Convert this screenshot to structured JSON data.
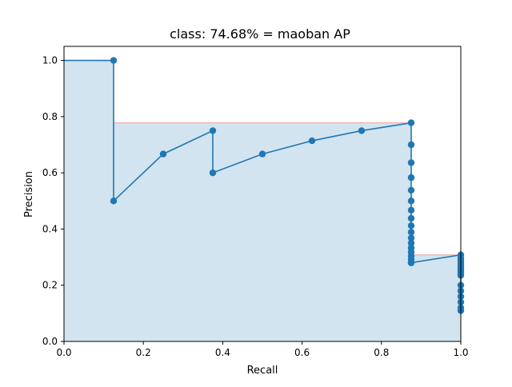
{
  "chart_data": {
    "type": "area",
    "title": "class: 74.68% = maoban AP",
    "xlabel": "Recall",
    "ylabel": "Precision",
    "xlim": [
      0,
      1
    ],
    "ylim": [
      0,
      1.05
    ],
    "xticks": [
      "0.0",
      "0.2",
      "0.4",
      "0.6",
      "0.8",
      "1.0"
    ],
    "yticks": [
      "0.0",
      "0.2",
      "0.4",
      "0.6",
      "0.8",
      "1.0"
    ],
    "grid": false,
    "colors": {
      "line": "#1f77b4",
      "fill": "#1f77b4",
      "fill_opacity": 0.2,
      "envelope": "#f08080"
    },
    "series": [
      {
        "type": "line-with-markers",
        "x": [
          0.0,
          0.125,
          0.125,
          0.25,
          0.375,
          0.375,
          0.5,
          0.625,
          0.75,
          0.875,
          0.875,
          0.875,
          0.875,
          0.875,
          0.875,
          0.875,
          0.875,
          0.875,
          0.875,
          0.875,
          0.875,
          0.875,
          0.875,
          0.875,
          0.875,
          0.875,
          0.875,
          0.875,
          1.0,
          1.0,
          1.0,
          1.0,
          1.0,
          1.0,
          1.0,
          1.0,
          1.0,
          1.0,
          1.0,
          1.0,
          1.0,
          1.0,
          1.0
        ],
        "y": [
          1.0,
          1.0,
          0.5,
          0.667,
          0.75,
          0.6,
          0.667,
          0.714,
          0.75,
          0.778,
          0.7,
          0.636,
          0.583,
          0.538,
          0.5,
          0.467,
          0.438,
          0.412,
          0.389,
          0.368,
          0.35,
          0.333,
          0.318,
          0.304,
          0.292,
          0.28,
          0.28,
          0.28,
          0.308,
          0.296,
          0.286,
          0.276,
          0.267,
          0.258,
          0.25,
          0.242,
          0.235,
          0.2,
          0.18,
          0.16,
          0.14,
          0.12,
          0.11
        ],
        "markers_start_index": 1
      },
      {
        "type": "envelope-step",
        "x": [
          0.0,
          0.125,
          0.125,
          0.875,
          0.875,
          1.0,
          1.0
        ],
        "y": [
          1.0,
          1.0,
          0.778,
          0.778,
          0.308,
          0.308,
          0.11
        ]
      }
    ]
  }
}
